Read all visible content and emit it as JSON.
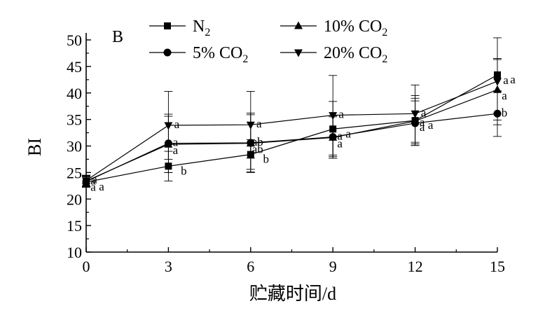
{
  "chart_data": {
    "type": "line",
    "panel_label": "B",
    "xlabel": "贮藏时间/d",
    "ylabel": "BI",
    "x": [
      0,
      3,
      6,
      9,
      12,
      15
    ],
    "xlim": [
      0,
      15
    ],
    "ylim": [
      10,
      50
    ],
    "xticks": [
      0,
      3,
      6,
      9,
      12,
      15
    ],
    "yticks": [
      10,
      15,
      20,
      25,
      30,
      35,
      40,
      45,
      50
    ],
    "grid": false,
    "legend_position": "top",
    "series": [
      {
        "key": "n2",
        "marker": "square",
        "legend": {
          "main": "N",
          "sub": "2"
        },
        "values": [
          23.2,
          26.2,
          28.4,
          33.2,
          34.8,
          43.4
        ],
        "errors": [
          1.0,
          2.8,
          2.8,
          5.2,
          4.7,
          3.1
        ],
        "labels": [
          "a",
          "b",
          "b",
          "a",
          "a",
          "a"
        ]
      },
      {
        "key": "co2_5",
        "marker": "circle",
        "legend": {
          "main": "5% CO",
          "sub": "2"
        },
        "values": [
          23.3,
          30.5,
          30.6,
          31.7,
          34.3,
          36.1
        ],
        "errors": [
          1.0,
          5.5,
          5.6,
          4.0,
          4.2,
          4.3
        ],
        "labels": [
          "a",
          "a",
          "ab",
          "a",
          "a",
          "b"
        ]
      },
      {
        "key": "co2_10",
        "marker": "triangle-up",
        "legend": {
          "main": "10% CO",
          "sub": "2"
        },
        "values": [
          23.4,
          30.3,
          30.5,
          31.6,
          34.7,
          40.6
        ],
        "errors": [
          1.0,
          5.3,
          5.4,
          3.9,
          4.3,
          5.7
        ],
        "labels": [
          "a",
          "a",
          "ab",
          "a",
          "a",
          "a"
        ]
      },
      {
        "key": "co2_20",
        "marker": "triangle-down",
        "legend": {
          "main": "20% CO",
          "sub": "2"
        },
        "values": [
          23.5,
          33.9,
          34.0,
          35.8,
          36.1,
          42.2
        ],
        "errors": [
          1.0,
          6.4,
          6.3,
          7.5,
          5.4,
          8.2
        ],
        "labels": [
          "a",
          "a",
          "a",
          "a",
          "a",
          "a"
        ]
      }
    ]
  }
}
